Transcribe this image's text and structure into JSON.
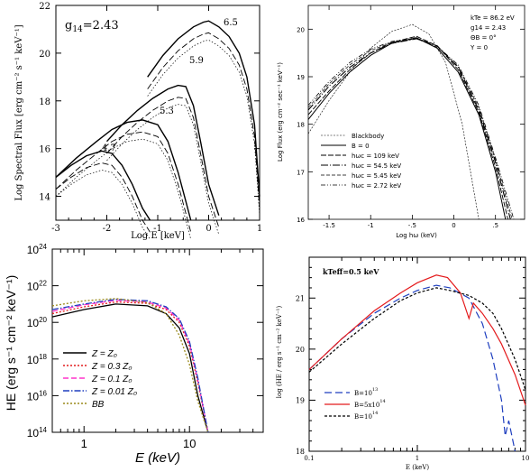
{
  "chart_data": [
    {
      "type": "line",
      "panel": "top-left",
      "xlabel": "Log E [keV]",
      "ylabel": "Log Spectral Flux [erg cm⁻² s⁻¹ keV⁻¹]",
      "xlim": [
        -3,
        1
      ],
      "ylim": [
        13,
        22
      ],
      "xticks": [
        "-3",
        "-2",
        "-1",
        "0",
        "1"
      ],
      "yticks": [
        "14",
        "16",
        "18",
        "20",
        "22"
      ],
      "annotations": [
        "g14=2.43",
        "6.5",
        "5.9",
        "5.3",
        "4.7"
      ],
      "series": [
        {
          "name": "6.5",
          "x": [
            -1.2,
            -0.9,
            -0.6,
            -0.3,
            -0.1,
            0.0,
            0.2,
            0.4,
            0.6,
            0.75,
            0.9,
            1.0
          ],
          "y": [
            19.0,
            19.9,
            20.6,
            21.1,
            21.3,
            21.35,
            21.1,
            20.7,
            20.0,
            19.0,
            17.0,
            14.0
          ]
        },
        {
          "name": "5.9",
          "x": [
            -2.0,
            -1.7,
            -1.4,
            -1.1,
            -0.8,
            -0.6,
            -0.45,
            -0.3,
            -0.15,
            0.0,
            0.2
          ],
          "y": [
            16.3,
            17.0,
            17.6,
            18.1,
            18.5,
            18.65,
            18.6,
            17.8,
            16.2,
            14.5,
            13.2
          ]
        },
        {
          "name": "5.3",
          "x": [
            -3.0,
            -2.6,
            -2.2,
            -1.9,
            -1.6,
            -1.3,
            -1.0,
            -0.8,
            -0.6,
            -0.45,
            -0.35
          ],
          "y": [
            14.8,
            15.6,
            16.3,
            16.8,
            17.1,
            17.2,
            17.0,
            16.3,
            15.0,
            13.8,
            13.0
          ]
        },
        {
          "name": "4.7",
          "x": [
            -3.0,
            -2.7,
            -2.4,
            -2.1,
            -1.9,
            -1.7,
            -1.5,
            -1.3,
            -1.15
          ],
          "y": [
            14.8,
            15.3,
            15.7,
            15.9,
            15.8,
            15.3,
            14.5,
            13.5,
            13.0
          ]
        }
      ]
    },
    {
      "type": "line",
      "panel": "top-right",
      "xlabel": "Log hω (keV)",
      "ylabel": "Log Flux (erg cm⁻² sec⁻¹ keV⁻¹)",
      "xlim": [
        -1.75,
        0.85
      ],
      "ylim": [
        16,
        20.5
      ],
      "xticks": [
        "-1.5",
        "-1",
        "-.5",
        "0",
        ".5"
      ],
      "yticks": [
        "16",
        "17",
        "18",
        "19",
        "20"
      ],
      "params": [
        "kTe = 86.2 eV",
        "g14 = 2.43",
        "ΘB = 0°",
        "Y = 0"
      ],
      "legend": [
        "Blackbody",
        "B = 0",
        "hωc = 109 keV",
        "hωc = 54.5 keV",
        "hωc = 5.45 keV",
        "hωc = 2.72 keV"
      ],
      "series": [
        {
          "name": "Blackbody",
          "x": [
            -1.75,
            -1.5,
            -1.25,
            -1.0,
            -0.75,
            -0.5,
            -0.3,
            -0.1,
            0.1,
            0.3
          ],
          "y": [
            17.8,
            18.5,
            19.1,
            19.6,
            19.95,
            20.1,
            19.9,
            19.3,
            18.0,
            16.0
          ]
        },
        {
          "name": "B = 0",
          "x": [
            -1.75,
            -1.5,
            -1.25,
            -1.0,
            -0.75,
            -0.45,
            -0.2,
            0.05,
            0.3,
            0.5,
            0.62
          ],
          "y": [
            18.1,
            18.65,
            19.1,
            19.45,
            19.7,
            19.82,
            19.6,
            19.1,
            18.2,
            17.0,
            16.0
          ]
        },
        {
          "name": "hωc = 109 keV",
          "x": [
            -1.75,
            -1.5,
            -1.25,
            -1.0,
            -0.75,
            -0.45,
            -0.2,
            0.05,
            0.3,
            0.5,
            0.65
          ],
          "y": [
            18.2,
            18.7,
            19.15,
            19.5,
            19.72,
            19.85,
            19.65,
            19.15,
            18.25,
            17.1,
            16.0
          ]
        },
        {
          "name": "hωc = 54.5 keV",
          "x": [
            -1.75,
            -1.5,
            -1.25,
            -1.0,
            -0.75,
            -0.45,
            -0.2,
            0.05,
            0.3,
            0.5,
            0.68
          ],
          "y": [
            18.3,
            18.8,
            19.2,
            19.5,
            19.7,
            19.8,
            19.65,
            19.2,
            18.3,
            17.2,
            16.0
          ]
        },
        {
          "name": "hωc = 5.45 keV",
          "x": [
            -1.75,
            -1.5,
            -1.25,
            -1.0,
            -0.75,
            -0.45,
            -0.2,
            0.05,
            0.3,
            0.5,
            0.7
          ],
          "y": [
            18.35,
            18.85,
            19.25,
            19.55,
            19.72,
            19.8,
            19.62,
            19.22,
            18.35,
            17.25,
            16.0
          ]
        },
        {
          "name": "hωc = 2.72 keV",
          "x": [
            -1.75,
            -1.5,
            -1.25,
            -1.0,
            -0.75,
            -0.45,
            -0.2,
            0.05,
            0.3,
            0.5,
            0.72
          ],
          "y": [
            18.4,
            18.9,
            19.3,
            19.58,
            19.74,
            19.82,
            19.64,
            19.25,
            18.4,
            17.3,
            16.0
          ]
        }
      ]
    },
    {
      "type": "line",
      "panel": "bottom-left",
      "xlabel": "E (keV)",
      "ylabel": "HE (erg s⁻¹ cm⁻² keV⁻¹)",
      "xscale": "log",
      "yscale": "log",
      "xlim": [
        0.5,
        50
      ],
      "ylim": [
        100000000000000.0,
        1e+24
      ],
      "xticks": [
        "1",
        "10"
      ],
      "yticks": [
        "10^14",
        "10^16",
        "10^18",
        "10^20",
        "10^22",
        "10^24"
      ],
      "legend": [
        "Z = Z₀",
        "Z = 0.3 Z₀",
        "Z = 0.1 Z₀",
        "Z = 0.01 Z₀",
        "BB"
      ],
      "series": [
        {
          "name": "Z = Z₀",
          "color": "#000000",
          "x": [
            0.5,
            1,
            2,
            4,
            6,
            8,
            10,
            12,
            15
          ],
          "y": [
            2e+20,
            5e+20,
            1e+21,
            8e+20,
            3e+20,
            5e+19,
            2e+18,
            1e+16,
            100000000000000.0
          ]
        },
        {
          "name": "Z = 0.3 Z₀",
          "color": "#e41a1c",
          "x": [
            0.5,
            1,
            2,
            4,
            6,
            8,
            10,
            12,
            15
          ],
          "y": [
            3e+20,
            7e+20,
            1.3e+21,
            1.1e+21,
            5e+20,
            1e+20,
            5e+18,
            5e+16,
            100000000000000.0
          ]
        },
        {
          "name": "Z = 0.1 Z₀",
          "color": "#ff33cc",
          "x": [
            0.5,
            1,
            2,
            4,
            6,
            8,
            10,
            12,
            15
          ],
          "y": [
            4e+20,
            9e+20,
            1.6e+21,
            1.3e+21,
            6e+20,
            1.3e+20,
            7e+18,
            7e+16,
            100000000000000.0
          ]
        },
        {
          "name": "Z = 0.01 Z₀",
          "color": "#1f3fbf",
          "x": [
            0.5,
            1,
            2,
            4,
            6,
            8,
            10,
            12,
            15
          ],
          "y": [
            5e+20,
            1e+21,
            1.8e+21,
            1.5e+21,
            7e+20,
            1.6e+20,
            9e+18,
            9e+16,
            100000000000000.0
          ]
        },
        {
          "name": "BB",
          "color": "#9a8a1a",
          "x": [
            0.5,
            1,
            2,
            4,
            6,
            8,
            10,
            12,
            15
          ],
          "y": [
            8e+20,
            1.5e+21,
            2e+21,
            1.2e+21,
            3e+20,
            2e+19,
            5e+17,
            5000000000000000.0,
            100000000000000.0
          ]
        }
      ]
    },
    {
      "type": "line",
      "panel": "bottom-right",
      "xlabel": "E (keV)",
      "ylabel": "log (HE / erg s⁻¹ cm⁻² keV⁻¹)",
      "xscale": "log",
      "xlim": [
        0.1,
        10
      ],
      "ylim": [
        18,
        21.8
      ],
      "xticks": [
        "0.1",
        "1",
        "10"
      ],
      "yticks": [
        "18",
        "19",
        "20",
        "21"
      ],
      "annotation": "kTeff=0.5 keV",
      "legend": [
        "B=10^13",
        "B=5x10^14",
        "B=10^14"
      ],
      "series": [
        {
          "name": "B=10^13",
          "color": "#1f3fbf",
          "x": [
            0.1,
            0.2,
            0.4,
            0.7,
            1.0,
            1.5,
            2.0,
            3.0,
            4.0,
            5.0,
            6.0,
            6.5,
            7.0,
            8.0
          ],
          "y": [
            19.6,
            20.2,
            20.7,
            21.0,
            21.15,
            21.25,
            21.2,
            21.0,
            20.5,
            19.8,
            19.0,
            18.3,
            18.6,
            18.0
          ]
        },
        {
          "name": "B=5x10^14",
          "color": "#e41a1c",
          "x": [
            0.1,
            0.2,
            0.4,
            0.7,
            1.0,
            1.5,
            1.9,
            2.5,
            3.0,
            3.3,
            4.0,
            5.0,
            6.0,
            8.0,
            10.0
          ],
          "y": [
            19.6,
            20.2,
            20.75,
            21.1,
            21.3,
            21.45,
            21.4,
            21.1,
            20.6,
            20.9,
            20.7,
            20.4,
            20.1,
            19.5,
            18.9
          ]
        },
        {
          "name": "B=10^14",
          "color": "#000000",
          "x": [
            0.1,
            0.2,
            0.4,
            0.7,
            1.0,
            1.5,
            2.0,
            3.0,
            4.0,
            5.0,
            6.0,
            8.0,
            10.0
          ],
          "y": [
            19.55,
            20.1,
            20.6,
            20.95,
            21.1,
            21.2,
            21.15,
            21.05,
            20.9,
            20.7,
            20.4,
            19.8,
            19.2
          ]
        }
      ]
    }
  ]
}
